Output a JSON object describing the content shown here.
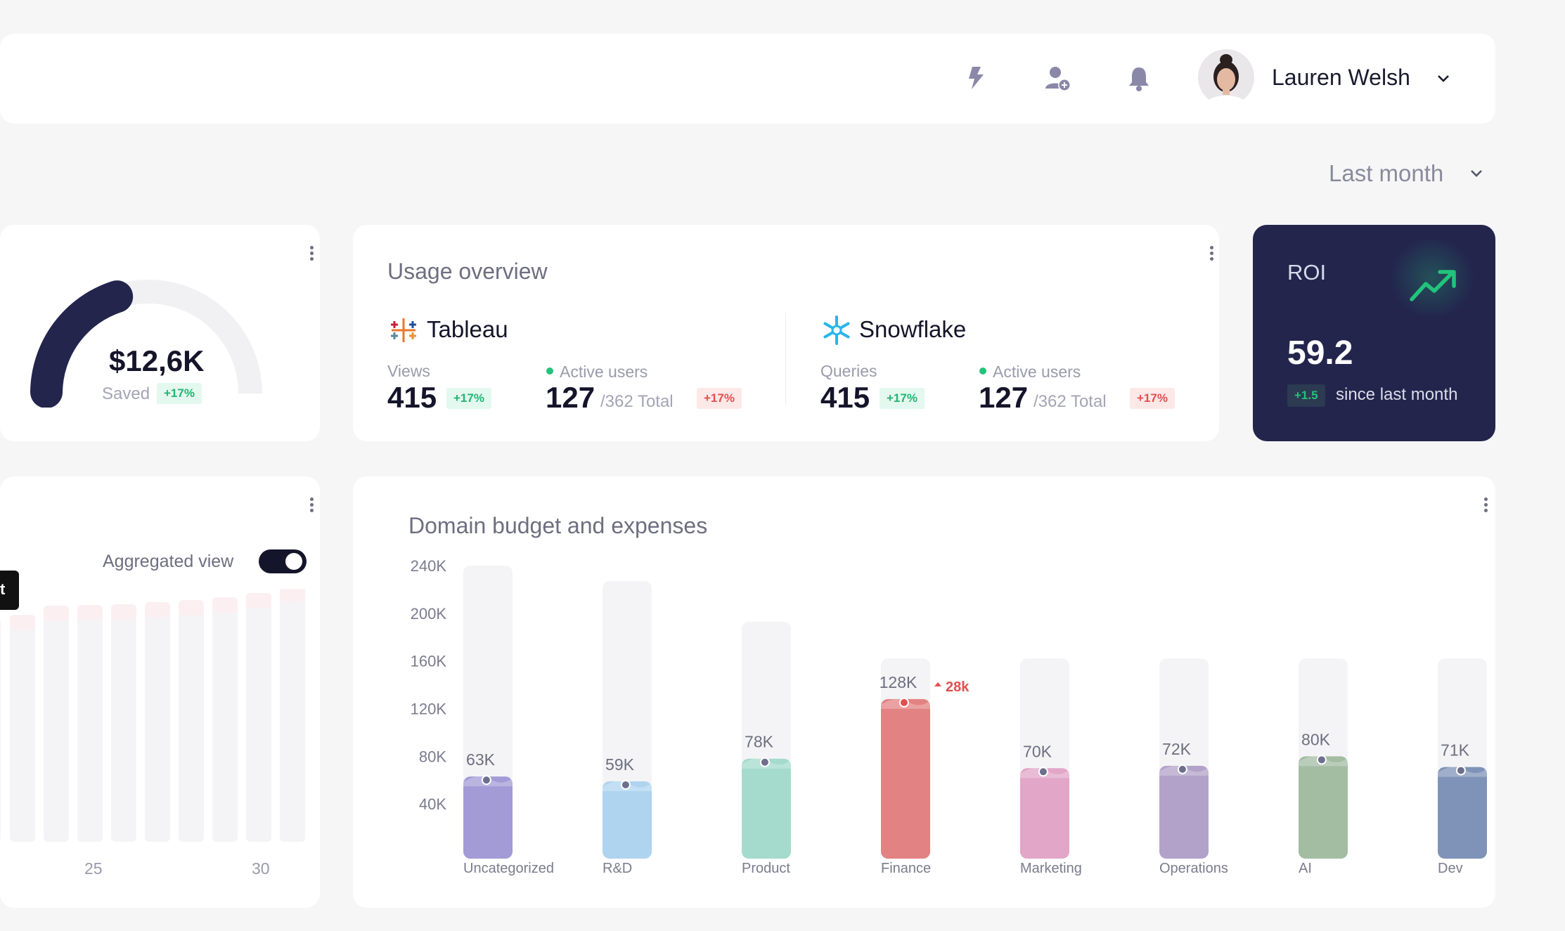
{
  "header": {
    "user_name": "Lauren Welsh",
    "icons": [
      "bolt-icon",
      "add-user-icon",
      "bell-icon",
      "chevron-down-icon"
    ]
  },
  "filters": {
    "period": "Last month"
  },
  "savings": {
    "value": "$12,6K",
    "label": "Saved",
    "change": "+17%",
    "fill_fraction": 0.4
  },
  "usage": {
    "title": "Usage overview",
    "tableau": {
      "name": "Tableau",
      "views_label": "Views",
      "views": "415",
      "views_change": "+17%",
      "active_label": "Active users",
      "active": "127",
      "total": "/362 Total",
      "active_change": "+17%"
    },
    "snowflake": {
      "name": "Snowflake",
      "queries_label": "Queries",
      "queries": "415",
      "queries_change": "+17%",
      "active_label": "Active users",
      "active": "127",
      "total": "/362 Total",
      "active_change": "+17%"
    }
  },
  "roi": {
    "title": "ROI",
    "value": "59.2",
    "change": "+1.5",
    "since": "since last month"
  },
  "trend": {
    "toggle_label": "Aggregated view",
    "toggle_on": true,
    "x_ticks": [
      "25",
      "30"
    ],
    "tooltip_fragment": "t"
  },
  "colors": {
    "navy": "#23254d",
    "green": "#22c37a",
    "red": "#e2504f"
  },
  "chart_data": {
    "type": "bar",
    "title": "Domain budget and expenses",
    "y_ticks": [
      "240K",
      "200K",
      "160K",
      "120K",
      "80K",
      "40K"
    ],
    "ylim": [
      0,
      240
    ],
    "categories": [
      "Uncategorized",
      "R&D",
      "Product",
      "Finance",
      "Marketing",
      "Operations",
      "AI",
      "Dev"
    ],
    "budget": [
      240,
      227,
      193,
      162,
      162,
      162,
      162,
      162
    ],
    "values": [
      63,
      59,
      78,
      128,
      70,
      72,
      80,
      71
    ],
    "value_labels": [
      "63K",
      "59K",
      "78K",
      "128K",
      "70K",
      "72K",
      "80K",
      "71K"
    ],
    "colors": [
      "#a39bd6",
      "#aed4f0",
      "#a5dbcc",
      "#e38282",
      "#e2a6c8",
      "#b2a2c9",
      "#a3bda3",
      "#7f93b8"
    ],
    "over_budget": {
      "category": "Finance",
      "label": "28k"
    }
  }
}
